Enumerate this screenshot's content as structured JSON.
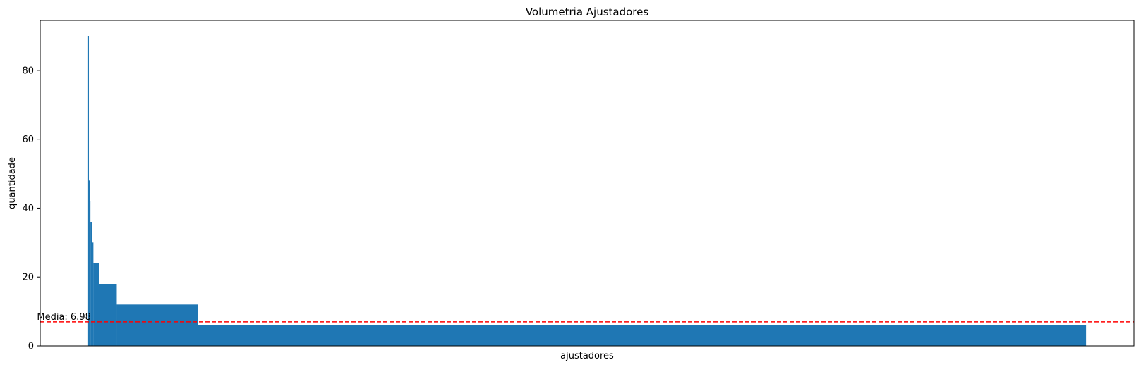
{
  "chart_data": {
    "type": "bar",
    "title": "Volumetria Ajustadores",
    "xlabel": "ajustadores",
    "ylabel": "quantidade",
    "ylim": [
      0,
      94.5
    ],
    "xlim": [
      -0.048,
      1.048
    ],
    "yticks": [
      0,
      20,
      40,
      60,
      80
    ],
    "xticks_visible": false,
    "grid": false,
    "bar_color": "#1f77b4",
    "segments": [
      {
        "start": 0.0,
        "end": 0.0008,
        "value": 90
      },
      {
        "start": 0.0008,
        "end": 0.0015,
        "value": 48
      },
      {
        "start": 0.0015,
        "end": 0.0023,
        "value": 42
      },
      {
        "start": 0.0023,
        "end": 0.0038,
        "value": 36
      },
      {
        "start": 0.0038,
        "end": 0.0053,
        "value": 30
      },
      {
        "start": 0.0053,
        "end": 0.0112,
        "value": 24
      },
      {
        "start": 0.0112,
        "end": 0.0287,
        "value": 18
      },
      {
        "start": 0.0287,
        "end": 0.1101,
        "value": 12
      },
      {
        "start": 0.1101,
        "end": 1.0,
        "value": 6
      }
    ],
    "mean_line": {
      "value": 6.98,
      "label": "Media: 6.98",
      "color": "#ff0000",
      "style": "dashed"
    }
  }
}
